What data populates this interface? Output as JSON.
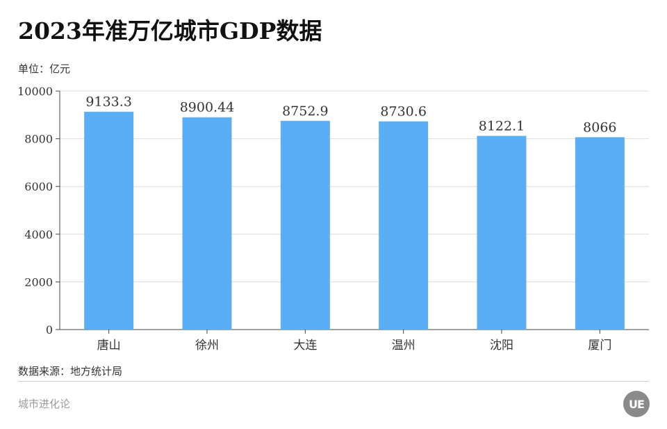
{
  "header": {
    "title": "2023年准万亿城市GDP数据",
    "unit_label": "单位：亿元"
  },
  "footer": {
    "source": "数据来源：地方统计局",
    "brand": "城市进化论",
    "logo_text": "UE"
  },
  "colors": {
    "bar": "#59aef5",
    "grid": "#dddddd",
    "axis": "#444444",
    "text": "#333333"
  },
  "chart_data": {
    "type": "bar",
    "title": "2023年准万亿城市GDP数据",
    "ylabel": "单位：亿元",
    "categories": [
      "唐山",
      "徐州",
      "大连",
      "温州",
      "沈阳",
      "厦门"
    ],
    "values": [
      9133.3,
      8900.44,
      8752.9,
      8730.6,
      8122.1,
      8066
    ],
    "value_labels": [
      "9133.3",
      "8900.44",
      "8752.9",
      "8730.6",
      "8122.1",
      "8066"
    ],
    "ylim": [
      0,
      10000
    ],
    "yticks": [
      0,
      2000,
      4000,
      6000,
      8000,
      10000
    ],
    "grid": true
  }
}
